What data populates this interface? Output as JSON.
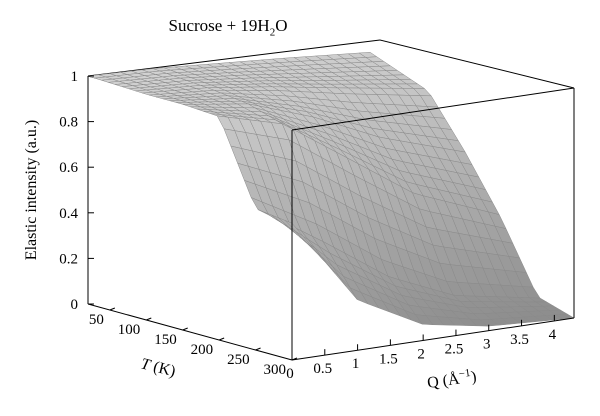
{
  "chart_data": {
    "type": "surface",
    "title": {
      "prefix": "Sucrose + 19H",
      "sub": "2",
      "suffix": "O"
    },
    "zlabel": "Elastic intensity (a.u.)",
    "xlabel": {
      "main": "Q (Å",
      "sup": "−1",
      "close": ")"
    },
    "ylabel": {
      "main": "T",
      "unit": " (K)"
    },
    "z_ticks": [
      "0",
      "0.2",
      "0.4",
      "0.6",
      "0.8",
      "1"
    ],
    "q_ticks": [
      "0",
      "0.5",
      "1",
      "1.5",
      "2",
      "2.5",
      "3",
      "3.5",
      "4"
    ],
    "t_ticks": [
      "50",
      "100",
      "150",
      "200",
      "250",
      "300"
    ],
    "q_range": [
      0,
      4.3
    ],
    "t_range": [
      20,
      300
    ],
    "z_range": [
      0,
      1
    ],
    "surface_samples": {
      "description_of_axes": "rows = T (K), columns = Q (Å^-1)",
      "T": [
        20,
        100,
        150,
        200,
        250,
        300
      ],
      "Q": [
        0,
        1,
        2,
        3,
        4.3
      ],
      "z": [
        [
          1.0,
          0.99,
          0.97,
          0.95,
          0.92
        ],
        [
          0.99,
          0.97,
          0.93,
          0.88,
          0.82
        ],
        [
          0.99,
          0.95,
          0.85,
          0.72,
          0.6
        ],
        [
          0.98,
          0.9,
          0.7,
          0.5,
          0.35
        ],
        [
          0.62,
          0.45,
          0.25,
          0.12,
          0.05
        ],
        [
          0.6,
          0.22,
          0.07,
          0.02,
          0.0
        ]
      ]
    }
  }
}
